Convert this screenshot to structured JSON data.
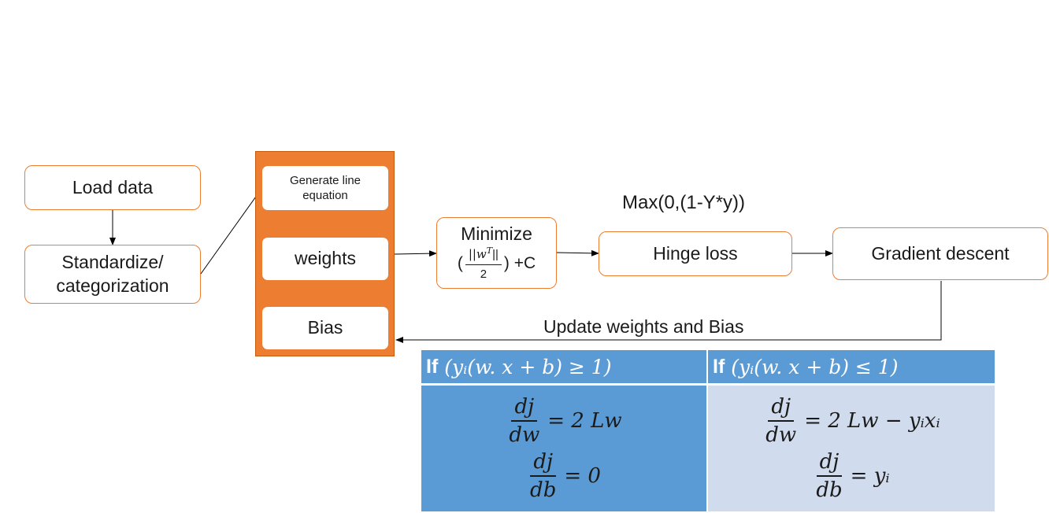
{
  "nodes": {
    "load_data": "Load data",
    "standardize": "Standardize/\ncategorization",
    "generate_line": "Generate line\nequation",
    "weights": "weights",
    "bias": "Bias",
    "minimize_title": "Minimize",
    "minimize_open": "(",
    "minimize_num": "||w",
    "minimize_sup": "T",
    "minimize_num_end": "||",
    "minimize_den": "2",
    "minimize_tail": ") +C",
    "hinge_loss": "Hinge loss",
    "gradient_descent": "Gradient descent"
  },
  "labels": {
    "hinge_formula": "Max(0,(1-Y*y))",
    "update": "Update weights and Bias"
  },
  "table": {
    "left_header_if": "If",
    "left_header_cond": "(yᵢ(w. x + b) ≥ 1)",
    "right_header_if": "If",
    "right_header_cond": "(yᵢ(w. x + b) ≤ 1)",
    "eq_num": "dj",
    "eq_dw": "dw",
    "eq_db": "db",
    "left_eq1_rhs": "= 2 Lw",
    "left_eq2_rhs": "= 0",
    "right_eq1_rhs": "= 2 Lw − yᵢxᵢ",
    "right_eq2_rhs": "= yᵢ"
  },
  "colors": {
    "orange": "#ed7d31",
    "header_blue": "#5b9bd5",
    "cell_blue": "#5b9bd5",
    "cell_light": "#d0dcee"
  }
}
